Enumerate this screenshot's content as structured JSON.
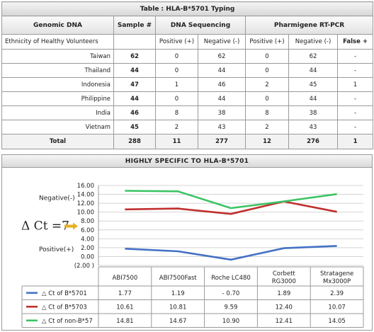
{
  "table": {
    "caption": "Table : HLA-B*5701 Typing",
    "headers": {
      "genomic_dna": "Genomic DNA",
      "sample": "Sample #",
      "dna_seq": "DNA Sequencing",
      "rtpcr": "Pharmigene RT-PCR"
    },
    "subheaders": {
      "ethnicity": "Ethnicity of Healthy Volunteers",
      "seq_pos": "Positive (+)",
      "seq_neg": "Negative (-)",
      "pcr_pos": "Positive (+)",
      "pcr_neg": "Negative (-)",
      "false_pos": "False +"
    },
    "rows": [
      {
        "ethnicity": "Taiwan",
        "sample": "62",
        "seq_pos": "0",
        "seq_neg": "62",
        "pcr_pos": "0",
        "pcr_neg": "62",
        "false_pos": "-"
      },
      {
        "ethnicity": "Thailand",
        "sample": "44",
        "seq_pos": "0",
        "seq_neg": "44",
        "pcr_pos": "0",
        "pcr_neg": "44",
        "false_pos": "-"
      },
      {
        "ethnicity": "Indonesia",
        "sample": "47",
        "seq_pos": "1",
        "seq_neg": "46",
        "pcr_pos": "2",
        "pcr_neg": "45",
        "false_pos": "1"
      },
      {
        "ethnicity": "Philippine",
        "sample": "44",
        "seq_pos": "0",
        "seq_neg": "44",
        "pcr_pos": "0",
        "pcr_neg": "44",
        "false_pos": "-"
      },
      {
        "ethnicity": "India",
        "sample": "46",
        "seq_pos": "8",
        "seq_neg": "38",
        "pcr_pos": "8",
        "pcr_neg": "38",
        "false_pos": "-"
      },
      {
        "ethnicity": "Vietnam",
        "sample": "45",
        "seq_pos": "2",
        "seq_neg": "43",
        "pcr_pos": "2",
        "pcr_neg": "43",
        "false_pos": "-"
      }
    ],
    "total": {
      "label": "Total",
      "sample": "288",
      "seq_pos": "11",
      "seq_neg": "277",
      "pcr_pos": "12",
      "pcr_neg": "276",
      "false_pos": "1"
    }
  },
  "chart_data": {
    "type": "line",
    "title": "HIGHLY SPECIFIC TO HLA-B*5701",
    "categories": [
      "ABI7500",
      "ABI7500Fast",
      "Roche LC480",
      "Corbett RG3000",
      "Stratagene Mx3000P"
    ],
    "category_lines": [
      [
        "ABI7500"
      ],
      [
        "ABI7500Fast"
      ],
      [
        "Roche LC480"
      ],
      [
        "Corbett",
        "RG3000"
      ],
      [
        "Stratagene",
        "Mx3000P"
      ]
    ],
    "series": [
      {
        "name": "△ Ct of B*5701",
        "values": [
          1.77,
          1.19,
          -0.7,
          1.89,
          2.39
        ],
        "labels": [
          "1.77",
          "1.19",
          "- 0.70",
          "1.89",
          "2.39"
        ],
        "color": "#4472c4"
      },
      {
        "name": "△ Ct of B*5703",
        "values": [
          10.61,
          10.81,
          9.59,
          12.4,
          10.07
        ],
        "labels": [
          "10.61",
          "10.81",
          "9.59",
          "12.40",
          "10.07"
        ],
        "color": "#c0302e"
      },
      {
        "name": "△ Ct of non-B*57",
        "values": [
          14.81,
          14.67,
          10.9,
          12.41,
          14.05
        ],
        "labels": [
          "14.81",
          "14.67",
          "10.90",
          "12.41",
          "14.05"
        ],
        "color": "#3cc464"
      }
    ],
    "ylim": [
      -2,
      16
    ],
    "yticks": [
      "(2.00 )",
      "0.00",
      "2.00",
      "4.00",
      "6.00",
      "8.00",
      "10.00",
      "12.00",
      "14.00",
      "16.00"
    ],
    "ytick_values": [
      -2,
      0,
      2,
      4,
      6,
      8,
      10,
      12,
      14,
      16
    ],
    "annotations": {
      "negative": "Negative(-)",
      "positive": "Positive(+)",
      "delta_ct": "Δ Ct =7"
    },
    "arrow_color": "#e8b020",
    "grid": true,
    "legend": "data-table"
  }
}
